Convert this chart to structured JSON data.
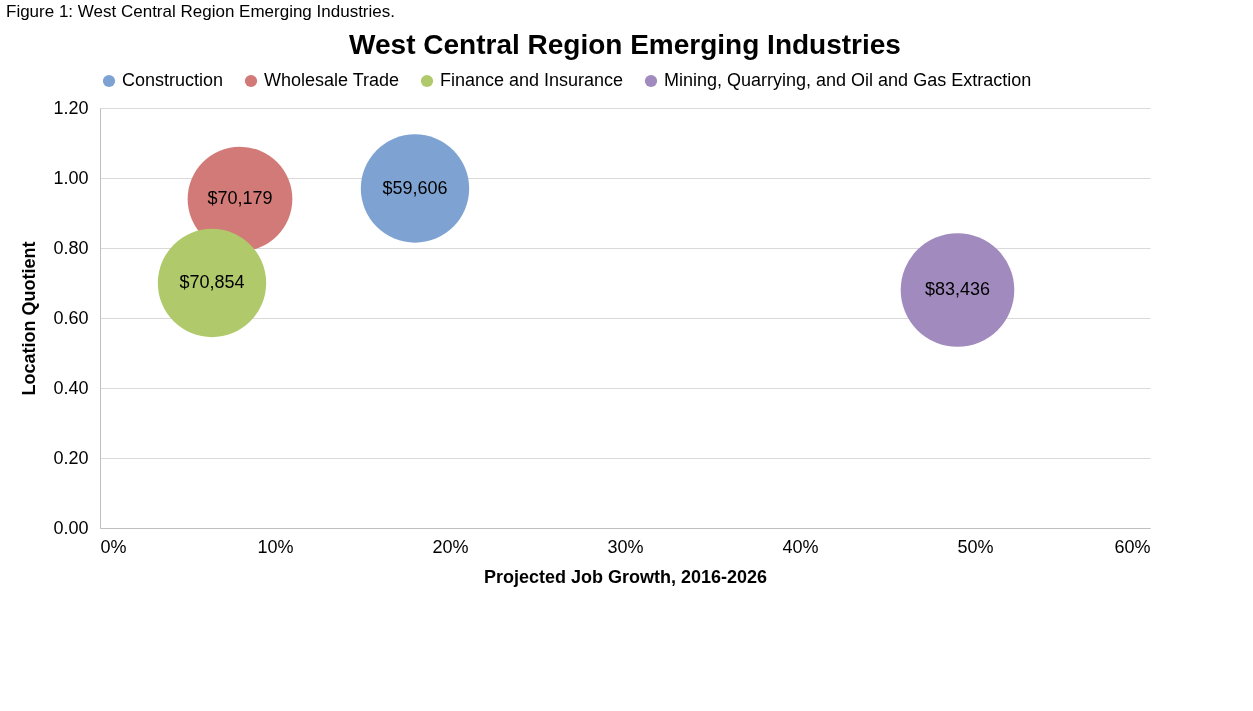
{
  "chart_data": {
    "type": "bubble",
    "title": "West Central Region Emerging Industries",
    "xlabel": "Projected Job Growth, 2016-2026",
    "ylabel": "Location Quotient",
    "annotations": [
      "Figure 1: West Central Region Emerging Industries.",
      {
        "text": "$59,606",
        "x": 18,
        "y": 0.97
      },
      {
        "text": "$70,179",
        "x": 8,
        "y": 0.94
      },
      {
        "text": "$70,854",
        "x": 6.4,
        "y": 0.7
      },
      {
        "text": "$83,436",
        "x": 49,
        "y": 0.68
      }
    ],
    "xlim": [
      0,
      60
    ],
    "xticks": [
      {
        "value": 0,
        "label": "0%"
      },
      {
        "value": 10,
        "label": "10%"
      },
      {
        "value": 20,
        "label": "20%"
      },
      {
        "value": 30,
        "label": "30%"
      },
      {
        "value": 40,
        "label": "40%"
      },
      {
        "value": 50,
        "label": "50%"
      },
      {
        "value": 60,
        "label": "60%"
      }
    ],
    "ylim": [
      0,
      1.2
    ],
    "yticks": [
      {
        "value": 0,
        "label": "0.00"
      },
      {
        "value": 0.2,
        "label": "0.20"
      },
      {
        "value": 0.4,
        "label": "0.40"
      },
      {
        "value": 0.6,
        "label": "0.60"
      },
      {
        "value": 0.8,
        "label": "0.80"
      },
      {
        "value": 1,
        "label": "1.00"
      },
      {
        "value": 1.2,
        "label": "1.20"
      }
    ],
    "grid": "y",
    "legend": "top",
    "series": [
      {
        "name": "Construction",
        "color": "#7ea3d2",
        "x": [
          18
        ],
        "values": [
          0.97
        ],
        "sizes": [
          0.91
        ]
      },
      {
        "name": "Wholesale Trade",
        "color": "#d27a77",
        "x": [
          8
        ],
        "values": [
          0.94
        ],
        "sizes": [
          0.85
        ]
      },
      {
        "name": "Finance and Insurance",
        "color": "#b0c96b",
        "x": [
          6.4
        ],
        "values": [
          0.7
        ],
        "sizes": [
          0.91
        ]
      },
      {
        "name": "Mining, Quarrying, and Oil and Gas Extraction",
        "color": "#a18bbe",
        "x": [
          49
        ],
        "values": [
          0.68
        ],
        "sizes": [
          1
        ]
      }
    ]
  }
}
